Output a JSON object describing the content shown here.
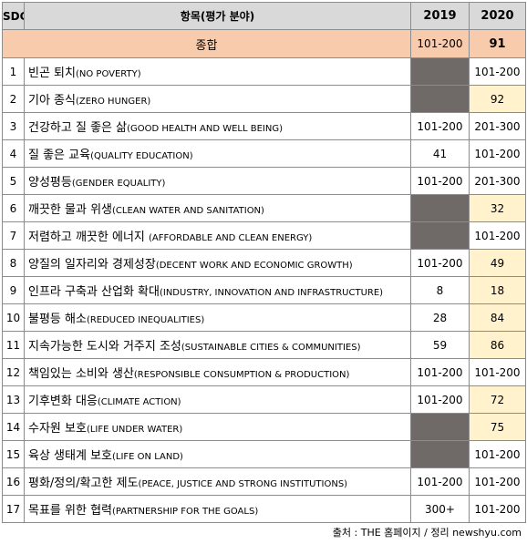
{
  "header": {
    "sdg": "SDG",
    "item": "항목(평가 분야)",
    "year1": "2019",
    "year2": "2020"
  },
  "summary": {
    "label": "종합",
    "v2019": "101-200",
    "v2020": "91"
  },
  "rows": [
    {
      "sdg": "1",
      "ko": "빈곤 퇴치",
      "en": "(NO POVERTY)",
      "v2019": "",
      "v2020": "101-200",
      "na2019": true,
      "hl2020": false
    },
    {
      "sdg": "2",
      "ko": "기아 종식",
      "en": "(ZERO HUNGER)",
      "v2019": "",
      "v2020": "92",
      "na2019": true,
      "hl2020": true
    },
    {
      "sdg": "3",
      "ko": "건강하고 질 좋은 삶",
      "en": "(GOOD HEALTH AND WELL BEING)",
      "v2019": "101-200",
      "v2020": "201-300",
      "na2019": false,
      "hl2020": false
    },
    {
      "sdg": "4",
      "ko": "질 좋은 교육",
      "en": "(QUALITY EDUCATION)",
      "v2019": "41",
      "v2020": "101-200",
      "na2019": false,
      "hl2020": false
    },
    {
      "sdg": "5",
      "ko": "양성평등",
      "en": "(GENDER EQUALITY)",
      "v2019": "101-200",
      "v2020": "201-300",
      "na2019": false,
      "hl2020": false
    },
    {
      "sdg": "6",
      "ko": "깨끗한 물과 위생",
      "en": "(CLEAN WATER AND SANITATION)",
      "v2019": "",
      "v2020": "32",
      "na2019": true,
      "hl2020": true
    },
    {
      "sdg": "7",
      "ko": "저렴하고 깨끗한 에너지 ",
      "en": "(AFFORDABLE AND CLEAN ENERGY)",
      "v2019": "",
      "v2020": "101-200",
      "na2019": true,
      "hl2020": false
    },
    {
      "sdg": "8",
      "ko": "양질의 일자리와 경제성장",
      "en": "(DECENT WORK AND ECONOMIC GROWTH)",
      "v2019": "101-200",
      "v2020": "49",
      "na2019": false,
      "hl2020": true
    },
    {
      "sdg": "9",
      "ko": "인프라 구축과 산업화 확대",
      "en": "(INDUSTRY, INNOVATION AND INFRASTRUCTURE)",
      "v2019": "8",
      "v2020": "18",
      "na2019": false,
      "hl2020": true
    },
    {
      "sdg": "10",
      "ko": "불평등 해소",
      "en": "(REDUCED INEQUALITIES)",
      "v2019": "28",
      "v2020": "84",
      "na2019": false,
      "hl2020": true
    },
    {
      "sdg": "11",
      "ko": "지속가능한 도시와 거주지 조성",
      "en": "(SUSTAINABLE CITIES & COMMUNITIES)",
      "v2019": "59",
      "v2020": "86",
      "na2019": false,
      "hl2020": true
    },
    {
      "sdg": "12",
      "ko": "책임있는 소비와 생산",
      "en": "(RESPONSIBLE CONSUMPTION & PRODUCTION)",
      "v2019": "101-200",
      "v2020": "101-200",
      "na2019": false,
      "hl2020": false
    },
    {
      "sdg": "13",
      "ko": "기후변화 대응",
      "en": "(CLIMATE ACTION)",
      "v2019": "101-200",
      "v2020": "72",
      "na2019": false,
      "hl2020": true
    },
    {
      "sdg": "14",
      "ko": "수자원 보호",
      "en": "(LIFE UNDER WATER)",
      "v2019": "",
      "v2020": "75",
      "na2019": true,
      "hl2020": true
    },
    {
      "sdg": "15",
      "ko": "육상 생태계 보호",
      "en": "(LIFE ON LAND)",
      "v2019": "",
      "v2020": "101-200",
      "na2019": true,
      "hl2020": false
    },
    {
      "sdg": "16",
      "ko": "평화/정의/확고한 제도",
      "en": "(PEACE, JUSTICE AND STRONG INSTITUTIONS)",
      "v2019": "101-200",
      "v2020": "101-200",
      "na2019": false,
      "hl2020": false
    },
    {
      "sdg": "17",
      "ko": "목표를 위한 협력",
      "en": "(PARTNERSHIP FOR THE GOALS)",
      "v2019": "300+",
      "v2020": "101-200",
      "na2019": false,
      "hl2020": false
    }
  ],
  "source": "출처 : THE 홈페이지 / 정리 newshyu.com",
  "colors": {
    "header_bg": "#d9d9d9",
    "summary_bg": "#f8cbad",
    "na_bg": "#6f6a67",
    "highlight_bg": "#fff2cc"
  }
}
